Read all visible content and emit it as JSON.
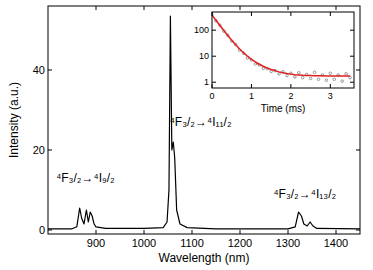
{
  "chart_data": [
    {
      "type": "line",
      "xlabel": "Wavelength (nm)",
      "ylabel": "Intensity (a.u.)",
      "xlim": [
        800,
        1450
      ],
      "xticks": [
        900,
        1000,
        1100,
        1200,
        1300,
        1400
      ],
      "ylim": [
        -1,
        56
      ],
      "yticks": [
        0,
        20,
        40
      ],
      "x": [
        800,
        850,
        860,
        866,
        870,
        875,
        880,
        884,
        888,
        892,
        896,
        900,
        920,
        1000,
        1040,
        1048,
        1052,
        1055,
        1058,
        1061,
        1064,
        1068,
        1075,
        1090,
        1150,
        1300,
        1315,
        1322,
        1328,
        1333,
        1340,
        1346,
        1352,
        1360,
        1450
      ],
      "series": [
        {
          "color": "#000000",
          "values": [
            0.3,
            0.3,
            0.8,
            5.5,
            3,
            1.5,
            5,
            2,
            4.5,
            3.5,
            1.5,
            0.8,
            0.4,
            0.4,
            0.6,
            2,
            10,
            53.5,
            20,
            22,
            18,
            5,
            1.5,
            0.6,
            0.3,
            0.3,
            0.8,
            4.5,
            3.5,
            1.5,
            1,
            2,
            1,
            0.4,
            0.3
          ]
        }
      ],
      "annotations": [
        {
          "text": "⁴F₃/₂→⁴I₉/₂",
          "x": 878,
          "y": 12
        },
        {
          "text": "⁴F₃/₂→⁴I₁₁/₂",
          "x": 1118,
          "y": 26
        },
        {
          "text": "⁴F₃/₂→⁴I₁₃/₂",
          "x": 1335,
          "y": 8
        }
      ]
    },
    {
      "type": "scatter",
      "xlabel": "Time (ms)",
      "log": "y",
      "xlim": [
        0,
        3.6
      ],
      "xticks": [
        0,
        1,
        2,
        3
      ],
      "ylim": [
        0.6,
        500
      ],
      "yticks": [
        1,
        10,
        100
      ],
      "x": [
        0,
        0.1,
        0.2,
        0.3,
        0.4,
        0.5,
        0.6,
        0.7,
        0.8,
        0.9,
        1.0,
        1.1,
        1.2,
        1.3,
        1.4,
        1.5,
        1.6,
        1.7,
        1.8,
        1.9,
        2.0,
        2.1,
        2.2,
        2.3,
        2.4,
        2.5,
        2.6,
        2.7,
        2.8,
        2.9,
        3.0,
        3.1,
        3.2,
        3.3,
        3.4,
        3.5
      ],
      "series": [
        {
          "type": "scatter",
          "marker": "circle",
          "color": "#808080",
          "values": [
            400,
            230,
            155,
            92,
            64,
            38,
            28,
            17,
            13,
            8.5,
            7.2,
            5,
            4.6,
            3.4,
            3.3,
            2.6,
            2.8,
            2.1,
            2.5,
            1.8,
            2.2,
            1.6,
            2.3,
            1.5,
            2.0,
            1.4,
            2.4,
            1.3,
            1.9,
            1.2,
            2.2,
            1.3,
            1.9,
            1.1,
            2.1,
            1.5
          ]
        },
        {
          "type": "line",
          "color": "#e02020",
          "values": [
            380,
            240,
            152,
            97,
            63,
            41,
            27.5,
            19,
            13.5,
            10,
            7.6,
            6,
            4.9,
            4.1,
            3.5,
            3.1,
            2.8,
            2.5,
            2.3,
            2.15,
            2.05,
            1.95,
            1.9,
            1.85,
            1.82,
            1.8,
            1.78,
            1.77,
            1.76,
            1.75,
            1.75,
            1.74,
            1.74,
            1.74,
            1.73,
            1.73
          ]
        }
      ]
    }
  ]
}
